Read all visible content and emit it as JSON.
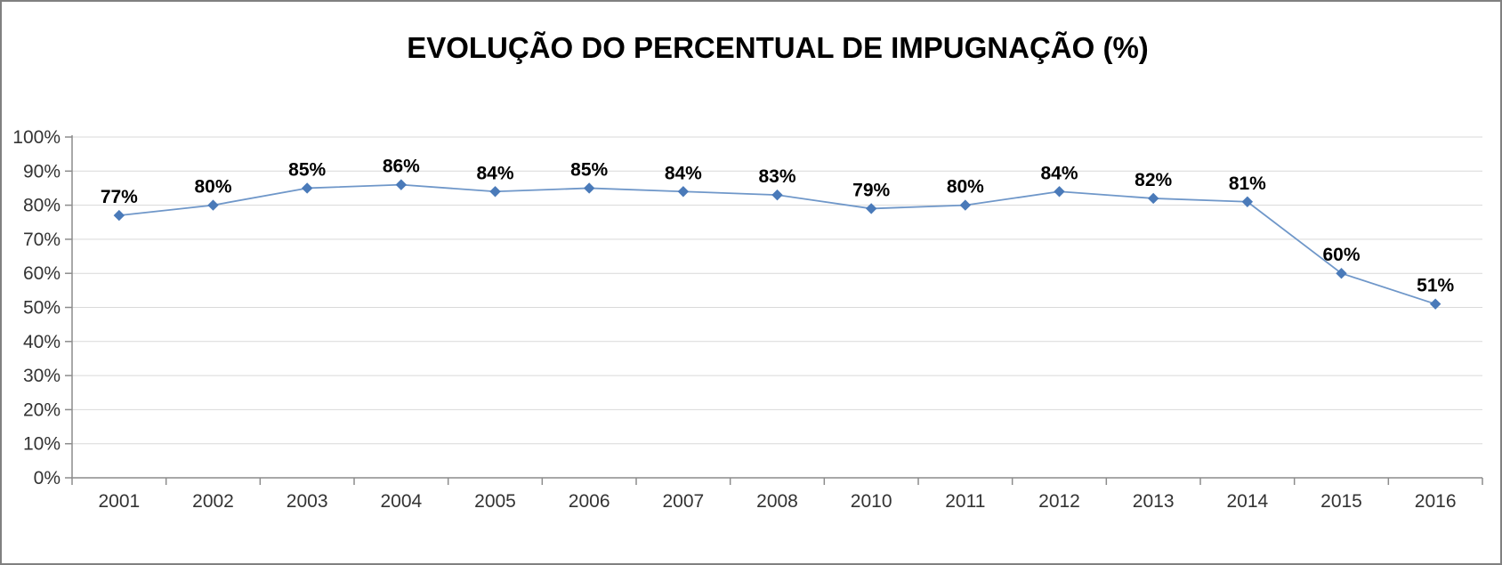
{
  "chart_data": {
    "type": "line",
    "title": "EVOLUÇÃO DO PERCENTUAL DE IMPUGNAÇÃO (%)",
    "categories": [
      "2001",
      "2002",
      "2003",
      "2004",
      "2005",
      "2006",
      "2007",
      "2008",
      "2010",
      "2011",
      "2012",
      "2013",
      "2014",
      "2015",
      "2016"
    ],
    "values": [
      77,
      80,
      85,
      86,
      84,
      85,
      84,
      83,
      79,
      80,
      84,
      82,
      81,
      60,
      51
    ],
    "data_labels": [
      "77%",
      "80%",
      "85%",
      "86%",
      "84%",
      "85%",
      "84%",
      "83%",
      "79%",
      "80%",
      "84%",
      "82%",
      "81%",
      "60%",
      "51%"
    ],
    "y_tick_labels": [
      "0%",
      "10%",
      "20%",
      "30%",
      "40%",
      "50%",
      "60%",
      "70%",
      "80%",
      "90%",
      "100%"
    ],
    "xlabel": "",
    "ylabel": "",
    "ylim": [
      0,
      100
    ],
    "y_step": 10,
    "grid": true,
    "legend": "none",
    "marker": "diamond",
    "colors": {
      "line": "#6f97c9",
      "marker": "#4a7ab9",
      "gridline": "#d9d9d9",
      "axis": "#8c8c8c",
      "tick_label": "#333333",
      "data_label": "#000000",
      "title": "#000000",
      "frame_border": "#808080"
    }
  }
}
